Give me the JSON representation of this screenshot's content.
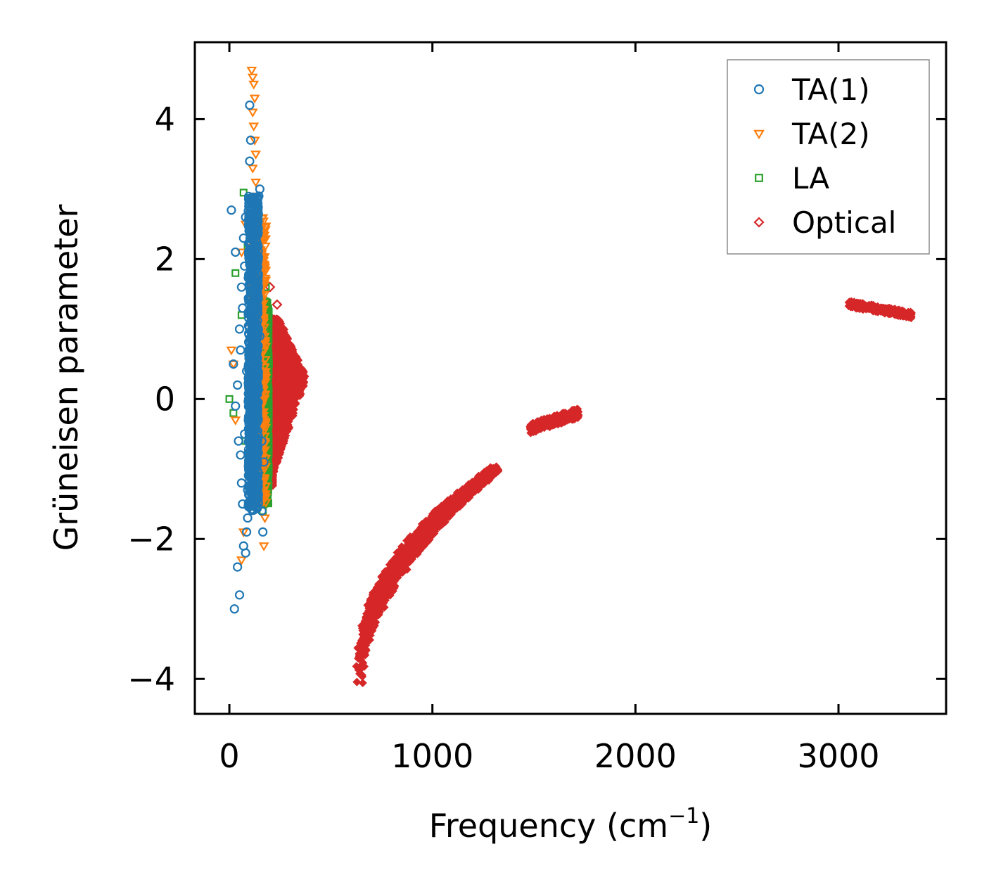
{
  "chart_data": {
    "type": "scatter",
    "title": "",
    "xlabel": "Frequency (cm",
    "xlabel_superscript": "−1",
    "xlabel_suffix": ")",
    "ylabel": "Grüneisen parameter",
    "xlim": [
      -170,
      3530
    ],
    "ylim": [
      -4.5,
      5.1
    ],
    "xticks": [
      0,
      1000,
      2000,
      3000
    ],
    "xtick_labels": [
      "0",
      "1000",
      "2000",
      "3000"
    ],
    "yticks": [
      -4,
      -2,
      0,
      2,
      4
    ],
    "ytick_labels": [
      "−4",
      "−2",
      "0",
      "2",
      "4"
    ],
    "grid": false,
    "legend_position": "top-right",
    "series": [
      {
        "name": "TA(1)",
        "marker": "circle",
        "color": "#1f77b4",
        "points": [
          [
            10,
            2.7
          ],
          [
            25,
            -3.0
          ],
          [
            30,
            2.1
          ],
          [
            40,
            -2.4
          ],
          [
            50,
            -2.8
          ],
          [
            55,
            -0.8
          ],
          [
            60,
            -1.2
          ],
          [
            65,
            -1.5
          ],
          [
            70,
            -2.1
          ],
          [
            75,
            -0.5
          ],
          [
            80,
            -2.2
          ],
          [
            85,
            -1.9
          ],
          [
            90,
            -1.3
          ],
          [
            95,
            -0.9
          ],
          [
            100,
            3.4
          ],
          [
            105,
            3.7
          ],
          [
            100,
            4.2
          ],
          [
            110,
            2.8
          ],
          [
            115,
            2.5
          ],
          [
            120,
            1.9
          ],
          [
            125,
            1.2
          ],
          [
            130,
            0.6
          ],
          [
            135,
            -0.2
          ],
          [
            140,
            -0.7
          ],
          [
            145,
            2.9
          ],
          [
            150,
            3.0
          ],
          [
            160,
            -1.6
          ],
          [
            165,
            -1.9
          ],
          [
            20,
            0.5
          ],
          [
            40,
            0.2
          ],
          [
            50,
            1.0
          ],
          [
            60,
            1.6
          ],
          [
            70,
            2.3
          ],
          [
            80,
            2.6
          ],
          [
            90,
            -1.7
          ],
          [
            100,
            -1.1
          ],
          [
            110,
            -0.4
          ],
          [
            120,
            0.3
          ],
          [
            130,
            1.5
          ],
          [
            140,
            2.2
          ],
          [
            150,
            0.9
          ],
          [
            160,
            -0.6
          ],
          [
            170,
            -0.9
          ],
          [
            30,
            -0.1
          ],
          [
            45,
            -0.6
          ],
          [
            55,
            0.7
          ],
          [
            65,
            1.3
          ],
          [
            75,
            1.9
          ],
          [
            85,
            0.4
          ],
          [
            95,
            -0.3
          ]
        ],
        "band": {
          "x_center": 118,
          "x_spread": 25,
          "y_min": -1.6,
          "y_max": 2.9
        }
      },
      {
        "name": "TA(2)",
        "marker": "triangle-down",
        "color": "#ff7f0e",
        "points": [
          [
            110,
            4.7
          ],
          [
            115,
            4.6
          ],
          [
            120,
            4.5
          ],
          [
            125,
            4.3
          ],
          [
            115,
            4.1
          ],
          [
            120,
            3.9
          ],
          [
            125,
            3.7
          ],
          [
            130,
            3.5
          ],
          [
            115,
            3.3
          ],
          [
            130,
            3.1
          ],
          [
            125,
            2.9
          ],
          [
            10,
            0.7
          ],
          [
            20,
            0.5
          ],
          [
            30,
            -0.3
          ],
          [
            60,
            -2.3
          ],
          [
            70,
            -1.9
          ],
          [
            170,
            -2.1
          ],
          [
            175,
            -1.7
          ],
          [
            180,
            -1.4
          ],
          [
            160,
            -0.9
          ],
          [
            165,
            -0.6
          ],
          [
            150,
            0.2
          ],
          [
            155,
            0.5
          ],
          [
            145,
            0.9
          ],
          [
            140,
            1.3
          ],
          [
            135,
            1.7
          ],
          [
            130,
            2.1
          ],
          [
            125,
            2.5
          ],
          [
            60,
            2.1
          ],
          [
            80,
            2.5
          ],
          [
            100,
            2.8
          ]
        ],
        "band": {
          "x_center": 145,
          "x_spread": 35,
          "y_min": -1.5,
          "y_max": 2.6
        }
      },
      {
        "name": "LA",
        "marker": "square",
        "color": "#2ca02c",
        "points": [
          [
            70,
            2.95
          ],
          [
            90,
            2.2
          ],
          [
            30,
            1.8
          ],
          [
            60,
            1.2
          ],
          [
            80,
            -0.6
          ],
          [
            20,
            -0.2
          ],
          [
            170,
            -1.5
          ],
          [
            180,
            -1.3
          ],
          [
            185,
            -1.0
          ],
          [
            175,
            -0.7
          ],
          [
            180,
            -0.3
          ],
          [
            185,
            0.0
          ],
          [
            190,
            0.3
          ],
          [
            195,
            0.5
          ],
          [
            190,
            0.8
          ],
          [
            185,
            1.1
          ],
          [
            190,
            1.3
          ],
          [
            180,
            1.6
          ],
          [
            175,
            1.9
          ],
          [
            165,
            -1.6
          ],
          [
            160,
            -1.2
          ],
          [
            150,
            -0.8
          ],
          [
            155,
            -0.4
          ],
          [
            160,
            0.1
          ],
          [
            165,
            0.6
          ],
          [
            170,
            1.0
          ],
          [
            172,
            1.4
          ],
          [
            0,
            0.0
          ]
        ],
        "band": {
          "x_center": 180,
          "x_spread": 14,
          "y_min": -1.5,
          "y_max": 1.4
        }
      },
      {
        "name": "Optical",
        "marker": "diamond",
        "color": "#d62728",
        "points": [
          [
            200,
            1.6
          ],
          [
            235,
            1.35
          ]
        ],
        "regions": [
          {
            "label": "low-frequency optical band",
            "x_range": [
              190,
              380
            ],
            "y_range": [
              -1.25,
              1.15
            ]
          },
          {
            "label": "curved branch",
            "x_range": [
              640,
              1310
            ],
            "y_range": [
              -4.05,
              -0.98
            ]
          },
          {
            "label": "mid branch",
            "x_range": [
              1480,
              1720
            ],
            "y_range": [
              -0.5,
              -0.15
            ]
          },
          {
            "label": "high-frequency branch",
            "x_range": [
              3050,
              3360
            ],
            "y_range": [
              1.18,
              1.42
            ]
          }
        ]
      }
    ]
  }
}
